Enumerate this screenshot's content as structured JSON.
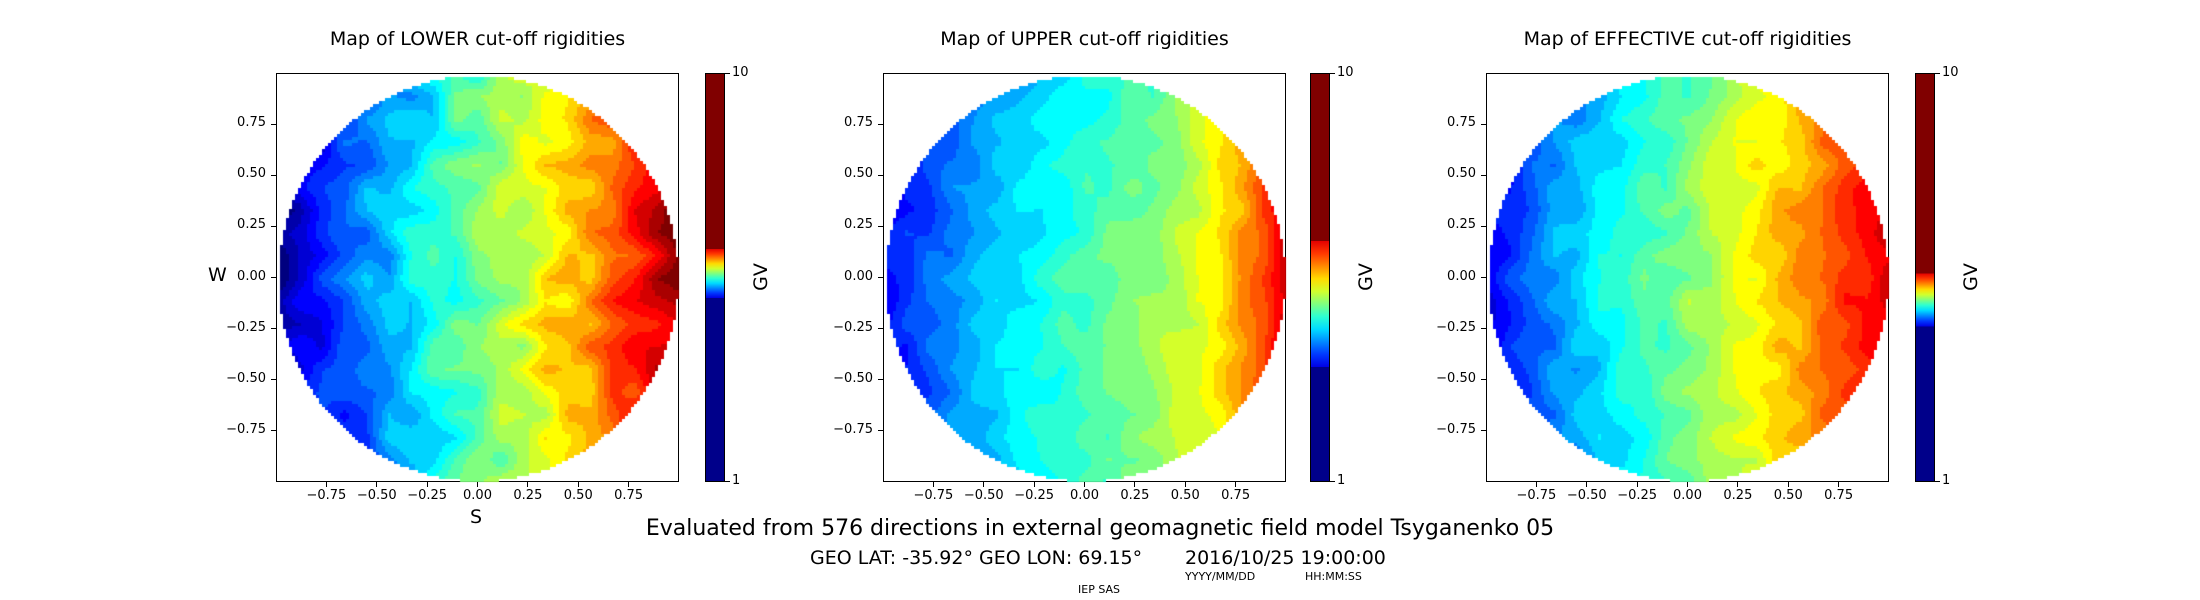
{
  "chart_data": [
    {
      "type": "heatmap",
      "title": "Map of LOWER cut-off rigidities",
      "xlabel": "S",
      "ylabel": "W",
      "xlim": [
        -1,
        1
      ],
      "ylim": [
        -1,
        1
      ],
      "xticks": [
        "−0.75",
        "−0.50",
        "−0.25",
        "0.00",
        "0.25",
        "0.50",
        "0.75"
      ],
      "yticks": [
        "0.75",
        "0.50",
        "0.25",
        "0.00",
        "−0.25",
        "−0.50",
        "−0.75"
      ],
      "colorbar": {
        "label": "GV",
        "min": "1",
        "max": "10",
        "colormap": "jet"
      },
      "shape": "circle",
      "pattern": "low (blue) at left/west edge, rising to high (red) at right edge"
    },
    {
      "type": "heatmap",
      "title": "Map of UPPER cut-off rigidities",
      "xlim": [
        -1,
        1
      ],
      "ylim": [
        -1,
        1
      ],
      "xticks": [
        "−0.75",
        "−0.50",
        "−0.25",
        "0.00",
        "0.25",
        "0.50",
        "0.75"
      ],
      "yticks": [
        "0.75",
        "0.50",
        "0.25",
        "0.00",
        "−0.25",
        "−0.50",
        "−0.75"
      ],
      "colorbar": {
        "label": "GV",
        "min": "1",
        "max": "10",
        "colormap": "jet"
      },
      "shape": "circle",
      "pattern": "blue at left edge, cyan/green center, red at right edge"
    },
    {
      "type": "heatmap",
      "title": "Map of EFFECTIVE cut-off rigidities",
      "xlim": [
        -1,
        1
      ],
      "ylim": [
        -1,
        1
      ],
      "xticks": [
        "−0.75",
        "−0.50",
        "−0.25",
        "0.00",
        "0.25",
        "0.50",
        "0.75"
      ],
      "yticks": [
        "0.75",
        "0.50",
        "0.25",
        "0.00",
        "−0.25",
        "−0.50",
        "−0.75"
      ],
      "colorbar": {
        "label": "GV",
        "min": "1",
        "max": "10",
        "colormap": "jet"
      },
      "shape": "circle",
      "pattern": "blue at left edge, yellow/orange right, red at right edge"
    }
  ],
  "footer": {
    "model_line": "Evaluated from 576 directions in external geomagnetic field model Tsyganenko 05",
    "location": "GEO LAT: -35.92°  GEO LON: 69.15°",
    "datetime": "2016/10/25 19:00:00",
    "date_format": "YYYY/MM/DD",
    "time_format": "HH:MM:SS",
    "credit": "IEP SAS"
  }
}
